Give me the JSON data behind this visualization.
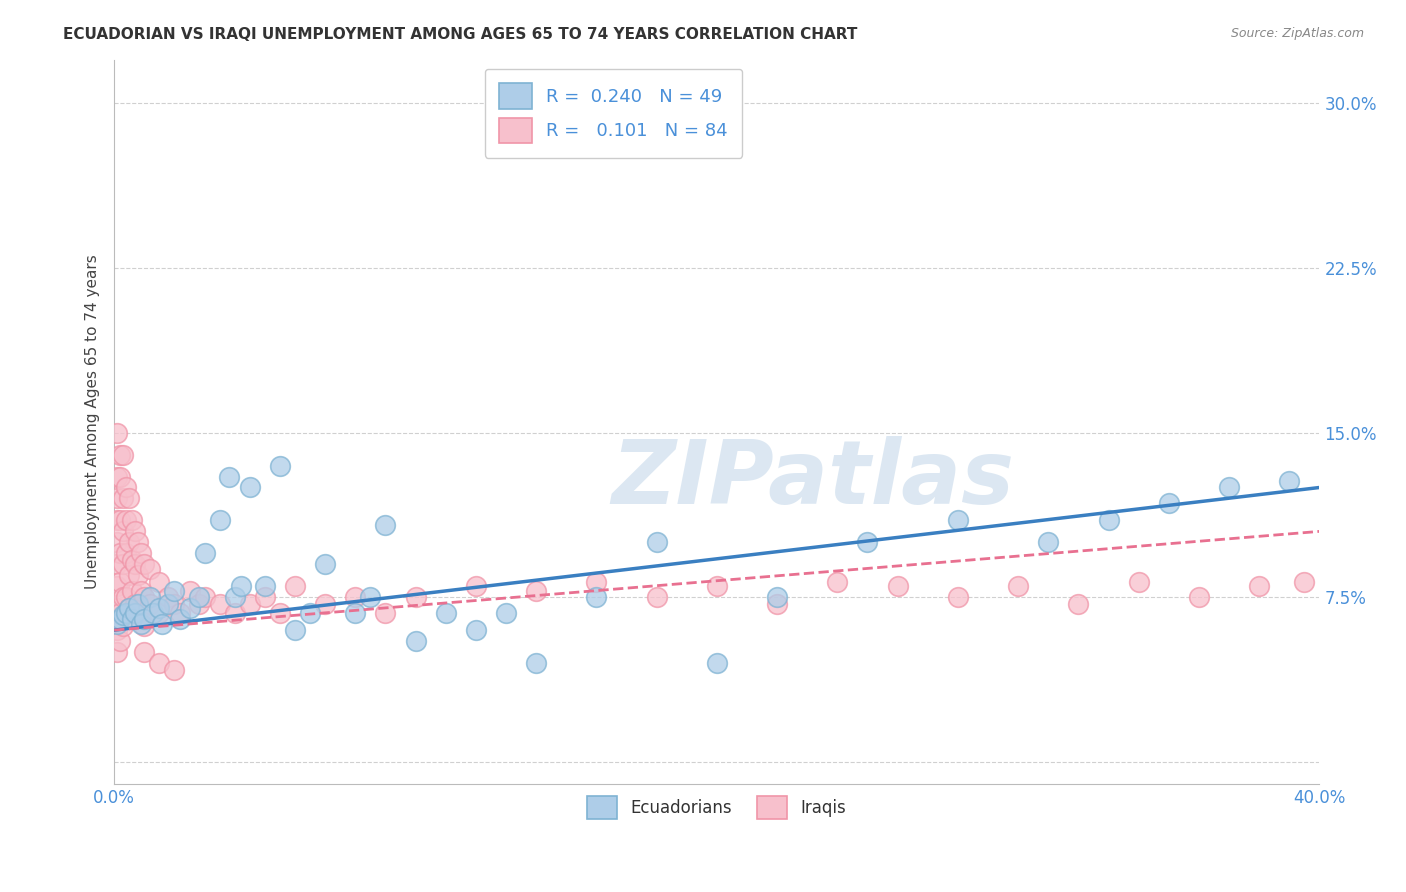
{
  "title": "ECUADORIAN VS IRAQI UNEMPLOYMENT AMONG AGES 65 TO 74 YEARS CORRELATION CHART",
  "source": "Source: ZipAtlas.com",
  "ylabel": "Unemployment Among Ages 65 to 74 years",
  "xlim": [
    0.0,
    0.4
  ],
  "ylim": [
    -0.01,
    0.32
  ],
  "xticks": [
    0.0,
    0.05,
    0.1,
    0.15,
    0.2,
    0.25,
    0.3,
    0.35,
    0.4
  ],
  "yticks": [
    0.0,
    0.075,
    0.15,
    0.225,
    0.3
  ],
  "watermark": "ZIPatlas",
  "blue_color": "#7fb3d3",
  "blue_fill": "#aecde8",
  "pink_color": "#f095a8",
  "pink_fill": "#f7c0cc",
  "line_blue": "#3a7fc1",
  "line_pink": "#e87090",
  "background": "#ffffff",
  "grid_color": "#d0d0d0",
  "ecuadorians_x": [
    0.001,
    0.002,
    0.003,
    0.004,
    0.005,
    0.006,
    0.007,
    0.008,
    0.009,
    0.01,
    0.012,
    0.013,
    0.015,
    0.016,
    0.018,
    0.02,
    0.022,
    0.025,
    0.028,
    0.03,
    0.035,
    0.038,
    0.04,
    0.042,
    0.045,
    0.05,
    0.055,
    0.06,
    0.065,
    0.07,
    0.08,
    0.085,
    0.09,
    0.1,
    0.11,
    0.12,
    0.13,
    0.14,
    0.16,
    0.18,
    0.2,
    0.22,
    0.25,
    0.28,
    0.31,
    0.33,
    0.35,
    0.37,
    0.39
  ],
  "ecuadorians_y": [
    0.063,
    0.065,
    0.067,
    0.068,
    0.07,
    0.065,
    0.068,
    0.072,
    0.063,
    0.065,
    0.075,
    0.068,
    0.07,
    0.063,
    0.072,
    0.078,
    0.065,
    0.07,
    0.075,
    0.095,
    0.11,
    0.13,
    0.075,
    0.08,
    0.125,
    0.08,
    0.135,
    0.06,
    0.068,
    0.09,
    0.068,
    0.075,
    0.108,
    0.055,
    0.068,
    0.06,
    0.068,
    0.045,
    0.075,
    0.1,
    0.045,
    0.075,
    0.1,
    0.11,
    0.1,
    0.11,
    0.118,
    0.125,
    0.128
  ],
  "iraqis_x": [
    0.001,
    0.001,
    0.001,
    0.001,
    0.001,
    0.001,
    0.001,
    0.001,
    0.001,
    0.001,
    0.002,
    0.002,
    0.002,
    0.002,
    0.002,
    0.002,
    0.002,
    0.003,
    0.003,
    0.003,
    0.003,
    0.003,
    0.003,
    0.004,
    0.004,
    0.004,
    0.004,
    0.005,
    0.005,
    0.005,
    0.005,
    0.006,
    0.006,
    0.006,
    0.007,
    0.007,
    0.007,
    0.008,
    0.008,
    0.008,
    0.009,
    0.009,
    0.01,
    0.01,
    0.01,
    0.012,
    0.012,
    0.015,
    0.015,
    0.018,
    0.02,
    0.022,
    0.025,
    0.028,
    0.03,
    0.035,
    0.04,
    0.045,
    0.05,
    0.055,
    0.06,
    0.07,
    0.08,
    0.09,
    0.1,
    0.12,
    0.14,
    0.16,
    0.18,
    0.2,
    0.22,
    0.24,
    0.26,
    0.28,
    0.3,
    0.32,
    0.34,
    0.36,
    0.38,
    0.395,
    0.01,
    0.015,
    0.02
  ],
  "iraqis_y": [
    0.15,
    0.13,
    0.12,
    0.11,
    0.1,
    0.09,
    0.08,
    0.07,
    0.06,
    0.05,
    0.14,
    0.13,
    0.11,
    0.095,
    0.082,
    0.068,
    0.055,
    0.14,
    0.12,
    0.105,
    0.09,
    0.075,
    0.062,
    0.125,
    0.11,
    0.095,
    0.075,
    0.12,
    0.1,
    0.085,
    0.07,
    0.11,
    0.092,
    0.078,
    0.105,
    0.09,
    0.072,
    0.1,
    0.085,
    0.068,
    0.095,
    0.078,
    0.09,
    0.075,
    0.062,
    0.088,
    0.072,
    0.082,
    0.068,
    0.075,
    0.072,
    0.068,
    0.078,
    0.072,
    0.075,
    0.072,
    0.068,
    0.072,
    0.075,
    0.068,
    0.08,
    0.072,
    0.075,
    0.068,
    0.075,
    0.08,
    0.078,
    0.082,
    0.075,
    0.08,
    0.072,
    0.082,
    0.08,
    0.075,
    0.08,
    0.072,
    0.082,
    0.075,
    0.08,
    0.082,
    0.05,
    0.045,
    0.042
  ]
}
